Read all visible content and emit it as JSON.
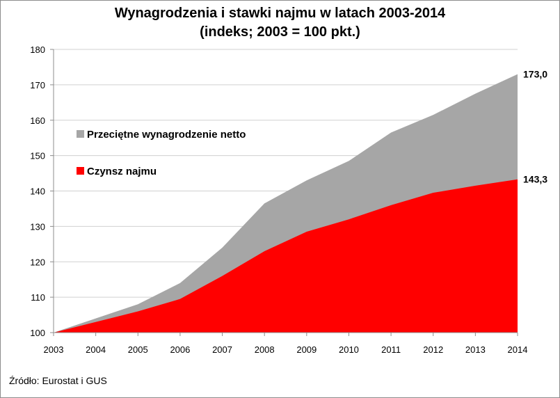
{
  "chart_data": {
    "type": "area",
    "title": "Wynagrodzenia i stawki najmu w latach 2003-2014",
    "subtitle": "(indeks; 2003 = 100 pkt.)",
    "xlabel": "",
    "ylabel": "",
    "x": [
      "2003",
      "2004",
      "2005",
      "2006",
      "2007",
      "2008",
      "2009",
      "2010",
      "2011",
      "2012",
      "2013",
      "2014"
    ],
    "ylim": [
      100,
      180
    ],
    "yticks": [
      100,
      110,
      120,
      130,
      140,
      150,
      160,
      170,
      180
    ],
    "grid": true,
    "legend_position": "top-left",
    "series": [
      {
        "name": "Przeciętne wynagrodzenie netto",
        "color": "#a6a6a6",
        "values": [
          100,
          104,
          108,
          114,
          124,
          136.5,
          143,
          148.5,
          156.5,
          161.5,
          167.5,
          173.0
        ],
        "end_label": "173,0"
      },
      {
        "name": "Czynsz najmu",
        "color": "#ff0000",
        "values": [
          100,
          103,
          106,
          109.5,
          116,
          123,
          128.5,
          132,
          136,
          139.5,
          141.5,
          143.3
        ],
        "end_label": "143,3"
      }
    ]
  },
  "source": "Źródło: Eurostat i GUS"
}
